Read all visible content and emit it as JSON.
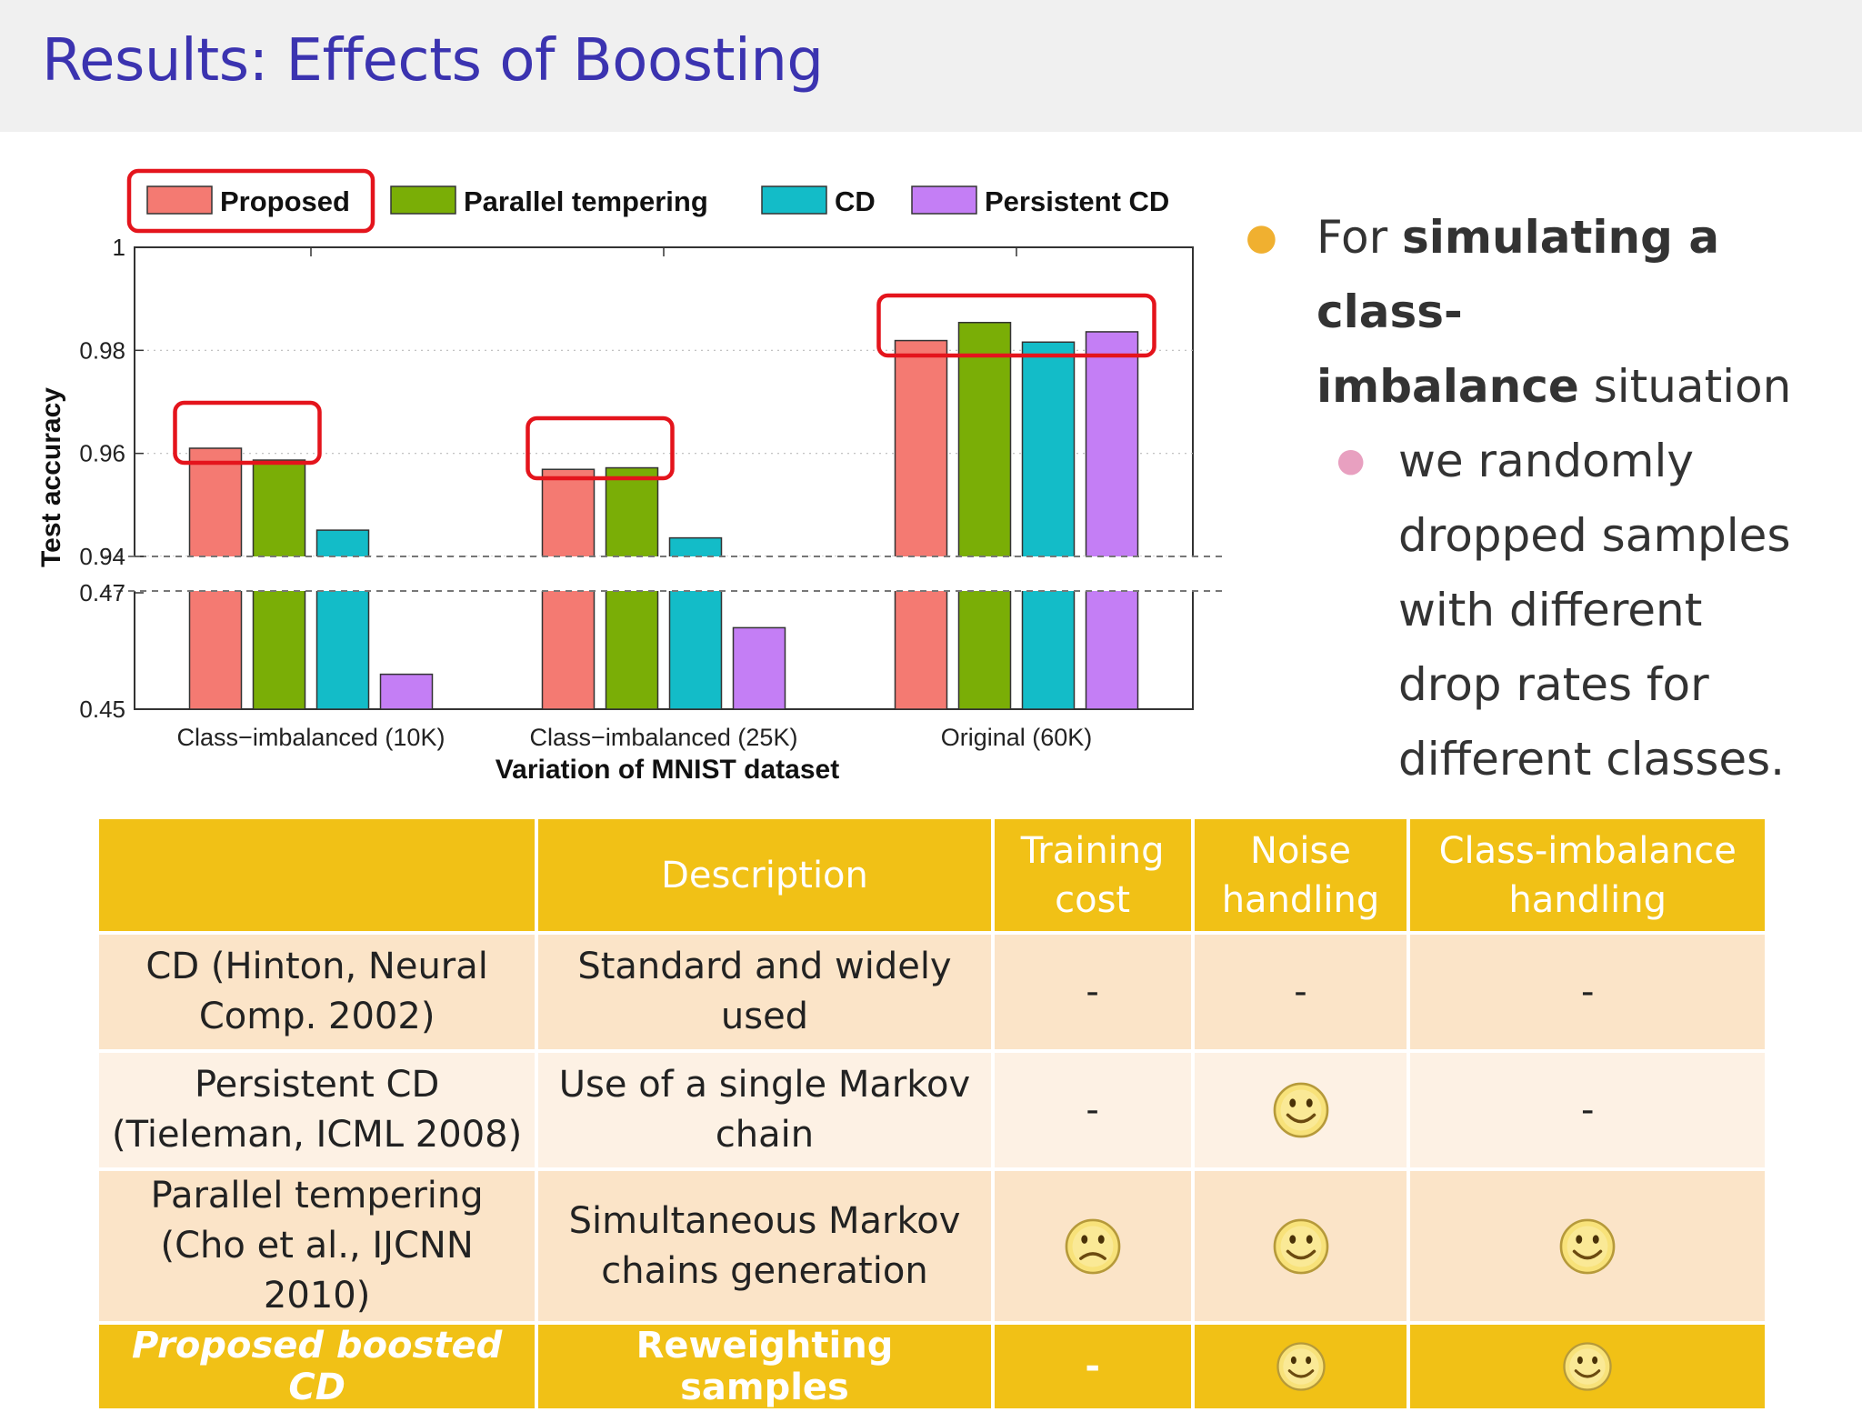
{
  "slide": {
    "title": "Results: Effects of Boosting",
    "bullet": {
      "prefix": "For ",
      "bold1": "simulating a class-",
      "bold2": "imbalance",
      "suffix": " situation",
      "sub": "we randomly dropped samples with different drop rates for different classes."
    }
  },
  "chart_data": {
    "type": "bar",
    "title": "",
    "xlabel": "Variation of MNIST dataset",
    "ylabel": "Test accuracy",
    "axis_break": true,
    "yticks_lower": [
      "0.45",
      "0.47"
    ],
    "yticks_upper": [
      "0.94",
      "0.96",
      "0.98",
      "1"
    ],
    "ylim_lower": [
      0.45,
      0.47
    ],
    "ylim_upper": [
      0.94,
      1.0
    ],
    "categories": [
      "Class−imbalanced (10K)",
      "Class−imbalanced (25K)",
      "Original (60K)"
    ],
    "series": [
      {
        "name": "Proposed",
        "color": "#f47a72",
        "values": [
          0.961,
          0.9569,
          0.9819
        ]
      },
      {
        "name": "Parallel tempering",
        "color": "#7aae06",
        "values": [
          0.9587,
          0.9572,
          0.9854
        ]
      },
      {
        "name": "CD",
        "color": "#13bcc8",
        "values": [
          0.9451,
          0.9436,
          0.9816
        ]
      },
      {
        "name": "Persistent CD",
        "color": "#c47ef5",
        "values": [
          0.456,
          0.464,
          0.9836
        ]
      }
    ],
    "highlight_boxes": [
      "legend-proposed",
      "group-0-top-two",
      "group-1-top-two",
      "group-2-all"
    ]
  },
  "table": {
    "headers": [
      "",
      "Description",
      "Training cost",
      "Noise handling",
      "Class-imbalance handling"
    ],
    "rows": [
      {
        "name": "CD (Hinton, Neural Comp. 2002)",
        "desc": "Standard and widely used",
        "cost": "-",
        "noise": "-",
        "imbalance": "-"
      },
      {
        "name": "Persistent CD (Tieleman, ICML 2008)",
        "desc": "Use of a single Markov chain",
        "cost": "-",
        "noise": "smiley-face-icon",
        "imbalance": "-"
      },
      {
        "name": "Parallel tempering (Cho et al., IJCNN 2010)",
        "desc": "Simultaneous Markov chains generation",
        "cost": "frowning-face-icon",
        "noise": "smiley-face-icon",
        "imbalance": "smiley-face-icon"
      },
      {
        "name": "Proposed boosted CD",
        "desc": "Reweighting samples",
        "cost": "-",
        "noise": "smiley-face-icon",
        "imbalance": "smiley-face-icon"
      }
    ]
  }
}
